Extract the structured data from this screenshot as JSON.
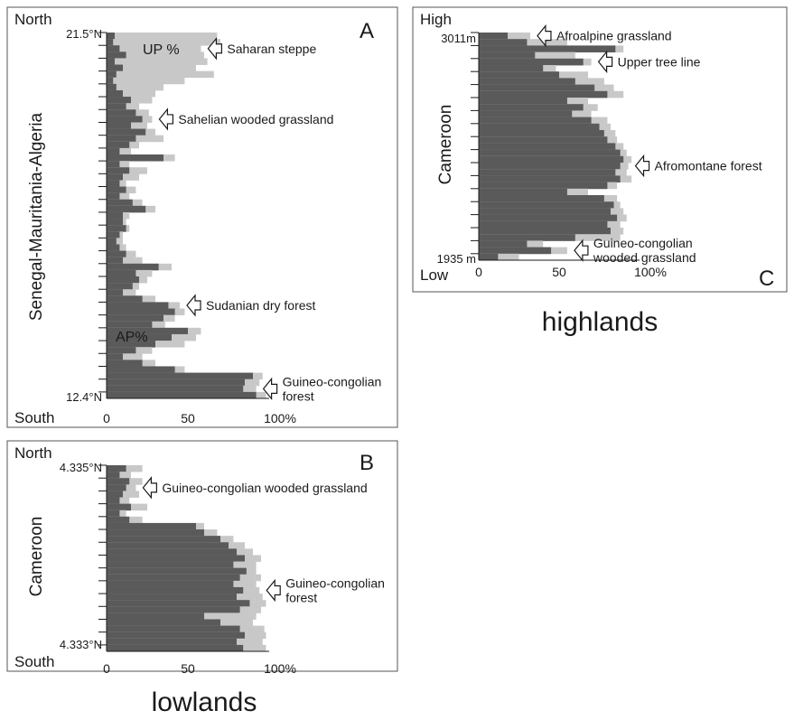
{
  "footer": {
    "lowlands": "lowlands",
    "highlands": "highlands"
  },
  "chart_data": [
    {
      "panel": "A",
      "type": "bar",
      "orientation": "horizontal-stacked",
      "ylabel": "Senegal-Mauritania-Algeria",
      "top_label": "North",
      "bottom_label": "South",
      "y_top_tick": "21.5°N",
      "y_bottom_tick": "12.4°N",
      "x_ticks": [
        "0",
        "50",
        "100%"
      ],
      "xlim": [
        0,
        100
      ],
      "series_labels": {
        "ap": "AP%",
        "up": "UP %"
      },
      "colors": {
        "ap": "#5a5a5a",
        "up": "#c8c8c8"
      },
      "annotations": [
        {
          "lines": [
            "Saharan steppe"
          ],
          "row": 2
        },
        {
          "lines": [
            "Sahelian wooded grassland"
          ],
          "row": 13
        },
        {
          "lines": [
            "Sudanian dry forest"
          ],
          "row": 42
        },
        {
          "lines": [
            "Guineo-congolian",
            "forest"
          ],
          "row": 55
        }
      ],
      "samples": [
        {
          "ap": 5,
          "total": 68
        },
        {
          "ap": 4,
          "total": 70
        },
        {
          "ap": 8,
          "total": 58
        },
        {
          "ap": 12,
          "total": 60
        },
        {
          "ap": 5,
          "total": 62
        },
        {
          "ap": 10,
          "total": 55
        },
        {
          "ap": 6,
          "total": 66
        },
        {
          "ap": 4,
          "total": 48
        },
        {
          "ap": 6,
          "total": 35
        },
        {
          "ap": 10,
          "total": 30
        },
        {
          "ap": 15,
          "total": 28
        },
        {
          "ap": 12,
          "total": 20
        },
        {
          "ap": 18,
          "total": 26
        },
        {
          "ap": 22,
          "total": 28
        },
        {
          "ap": 15,
          "total": 25
        },
        {
          "ap": 24,
          "total": 30
        },
        {
          "ap": 18,
          "total": 35
        },
        {
          "ap": 14,
          "total": 20
        },
        {
          "ap": 8,
          "total": 15
        },
        {
          "ap": 35,
          "total": 42
        },
        {
          "ap": 8,
          "total": 14
        },
        {
          "ap": 14,
          "total": 25
        },
        {
          "ap": 10,
          "total": 20
        },
        {
          "ap": 8,
          "total": 12
        },
        {
          "ap": 12,
          "total": 18
        },
        {
          "ap": 8,
          "total": 14
        },
        {
          "ap": 16,
          "total": 22
        },
        {
          "ap": 24,
          "total": 30
        },
        {
          "ap": 10,
          "total": 14
        },
        {
          "ap": 10,
          "total": 12
        },
        {
          "ap": 12,
          "total": 14
        },
        {
          "ap": 8,
          "total": 10
        },
        {
          "ap": 6,
          "total": 10
        },
        {
          "ap": 8,
          "total": 12
        },
        {
          "ap": 12,
          "total": 18
        },
        {
          "ap": 10,
          "total": 22
        },
        {
          "ap": 32,
          "total": 40
        },
        {
          "ap": 18,
          "total": 28
        },
        {
          "ap": 20,
          "total": 25
        },
        {
          "ap": 16,
          "total": 20
        },
        {
          "ap": 10,
          "total": 18
        },
        {
          "ap": 22,
          "total": 30
        },
        {
          "ap": 38,
          "total": 45
        },
        {
          "ap": 42,
          "total": 48
        },
        {
          "ap": 35,
          "total": 42
        },
        {
          "ap": 28,
          "total": 36
        },
        {
          "ap": 50,
          "total": 58
        },
        {
          "ap": 40,
          "total": 55
        },
        {
          "ap": 30,
          "total": 48
        },
        {
          "ap": 18,
          "total": 28
        },
        {
          "ap": 10,
          "total": 22
        },
        {
          "ap": 22,
          "total": 30
        },
        {
          "ap": 42,
          "total": 48
        },
        {
          "ap": 90,
          "total": 96
        },
        {
          "ap": 85,
          "total": 94
        },
        {
          "ap": 84,
          "total": 92
        },
        {
          "ap": 92,
          "total": 98
        }
      ]
    },
    {
      "panel": "B",
      "type": "bar",
      "orientation": "horizontal-stacked",
      "ylabel": "Cameroon",
      "top_label": "North",
      "bottom_label": "South",
      "y_top_tick": "4.335°N",
      "y_bottom_tick": "4.333°N",
      "x_ticks": [
        "0",
        "50",
        "100%"
      ],
      "xlim": [
        0,
        100
      ],
      "colors": {
        "ap": "#5a5a5a",
        "up": "#c8c8c8"
      },
      "annotations": [
        {
          "lines": [
            "Guineo-congolian wooded grassland"
          ],
          "row": 3
        },
        {
          "lines": [
            "Guineo-congolian",
            "forest"
          ],
          "row": 19
        }
      ],
      "samples": [
        {
          "ap": 12,
          "total": 22
        },
        {
          "ap": 8,
          "total": 15
        },
        {
          "ap": 14,
          "total": 22
        },
        {
          "ap": 12,
          "total": 18
        },
        {
          "ap": 10,
          "total": 20
        },
        {
          "ap": 8,
          "total": 14
        },
        {
          "ap": 15,
          "total": 25
        },
        {
          "ap": 8,
          "total": 12
        },
        {
          "ap": 14,
          "total": 22
        },
        {
          "ap": 55,
          "total": 60
        },
        {
          "ap": 60,
          "total": 68
        },
        {
          "ap": 70,
          "total": 78
        },
        {
          "ap": 75,
          "total": 85
        },
        {
          "ap": 80,
          "total": 90
        },
        {
          "ap": 85,
          "total": 95
        },
        {
          "ap": 78,
          "total": 92
        },
        {
          "ap": 86,
          "total": 92
        },
        {
          "ap": 82,
          "total": 95
        },
        {
          "ap": 78,
          "total": 92
        },
        {
          "ap": 84,
          "total": 94
        },
        {
          "ap": 80,
          "total": 96
        },
        {
          "ap": 88,
          "total": 98
        },
        {
          "ap": 82,
          "total": 95
        },
        {
          "ap": 60,
          "total": 92
        },
        {
          "ap": 70,
          "total": 90
        },
        {
          "ap": 82,
          "total": 97
        },
        {
          "ap": 85,
          "total": 98
        },
        {
          "ap": 80,
          "total": 96
        },
        {
          "ap": 84,
          "total": 98
        }
      ]
    },
    {
      "panel": "C",
      "type": "bar",
      "orientation": "horizontal-stacked",
      "ylabel": "Cameroon",
      "top_label": "High",
      "bottom_label": "Low",
      "y_top_tick": "3011m",
      "y_bottom_tick": "1935 m",
      "x_ticks": [
        "0",
        "50",
        "100%"
      ],
      "xlim": [
        0,
        100
      ],
      "colors": {
        "ap": "#5a5a5a",
        "up": "#c8c8c8"
      },
      "annotations": [
        {
          "lines": [
            "Afroalpine grassland"
          ],
          "row": 0
        },
        {
          "lines": [
            "Upper tree line"
          ],
          "row": 4
        },
        {
          "lines": [
            "Afromontane forest"
          ],
          "row": 20
        },
        {
          "lines": [
            "Guineo-congolian",
            "wooded grassland"
          ],
          "row": 33
        }
      ],
      "samples": [
        {
          "ap": 18,
          "total": 32
        },
        {
          "ap": 30,
          "total": 55
        },
        {
          "ap": 85,
          "total": 90
        },
        {
          "ap": 35,
          "total": 60
        },
        {
          "ap": 65,
          "total": 70
        },
        {
          "ap": 40,
          "total": 48
        },
        {
          "ap": 50,
          "total": 68
        },
        {
          "ap": 60,
          "total": 78
        },
        {
          "ap": 72,
          "total": 84
        },
        {
          "ap": 80,
          "total": 90
        },
        {
          "ap": 55,
          "total": 68
        },
        {
          "ap": 65,
          "total": 74
        },
        {
          "ap": 58,
          "total": 70
        },
        {
          "ap": 70,
          "total": 80
        },
        {
          "ap": 75,
          "total": 82
        },
        {
          "ap": 78,
          "total": 85
        },
        {
          "ap": 80,
          "total": 86
        },
        {
          "ap": 85,
          "total": 90
        },
        {
          "ap": 88,
          "total": 92
        },
        {
          "ap": 90,
          "total": 95
        },
        {
          "ap": 88,
          "total": 93
        },
        {
          "ap": 85,
          "total": 92
        },
        {
          "ap": 88,
          "total": 95
        },
        {
          "ap": 80,
          "total": 86
        },
        {
          "ap": 55,
          "total": 68
        },
        {
          "ap": 78,
          "total": 86
        },
        {
          "ap": 84,
          "total": 88
        },
        {
          "ap": 82,
          "total": 90
        },
        {
          "ap": 86,
          "total": 92
        },
        {
          "ap": 80,
          "total": 88
        },
        {
          "ap": 82,
          "total": 90
        },
        {
          "ap": 60,
          "total": 88
        },
        {
          "ap": 30,
          "total": 40
        },
        {
          "ap": 45,
          "total": 55
        },
        {
          "ap": 12,
          "total": 25
        }
      ]
    }
  ]
}
